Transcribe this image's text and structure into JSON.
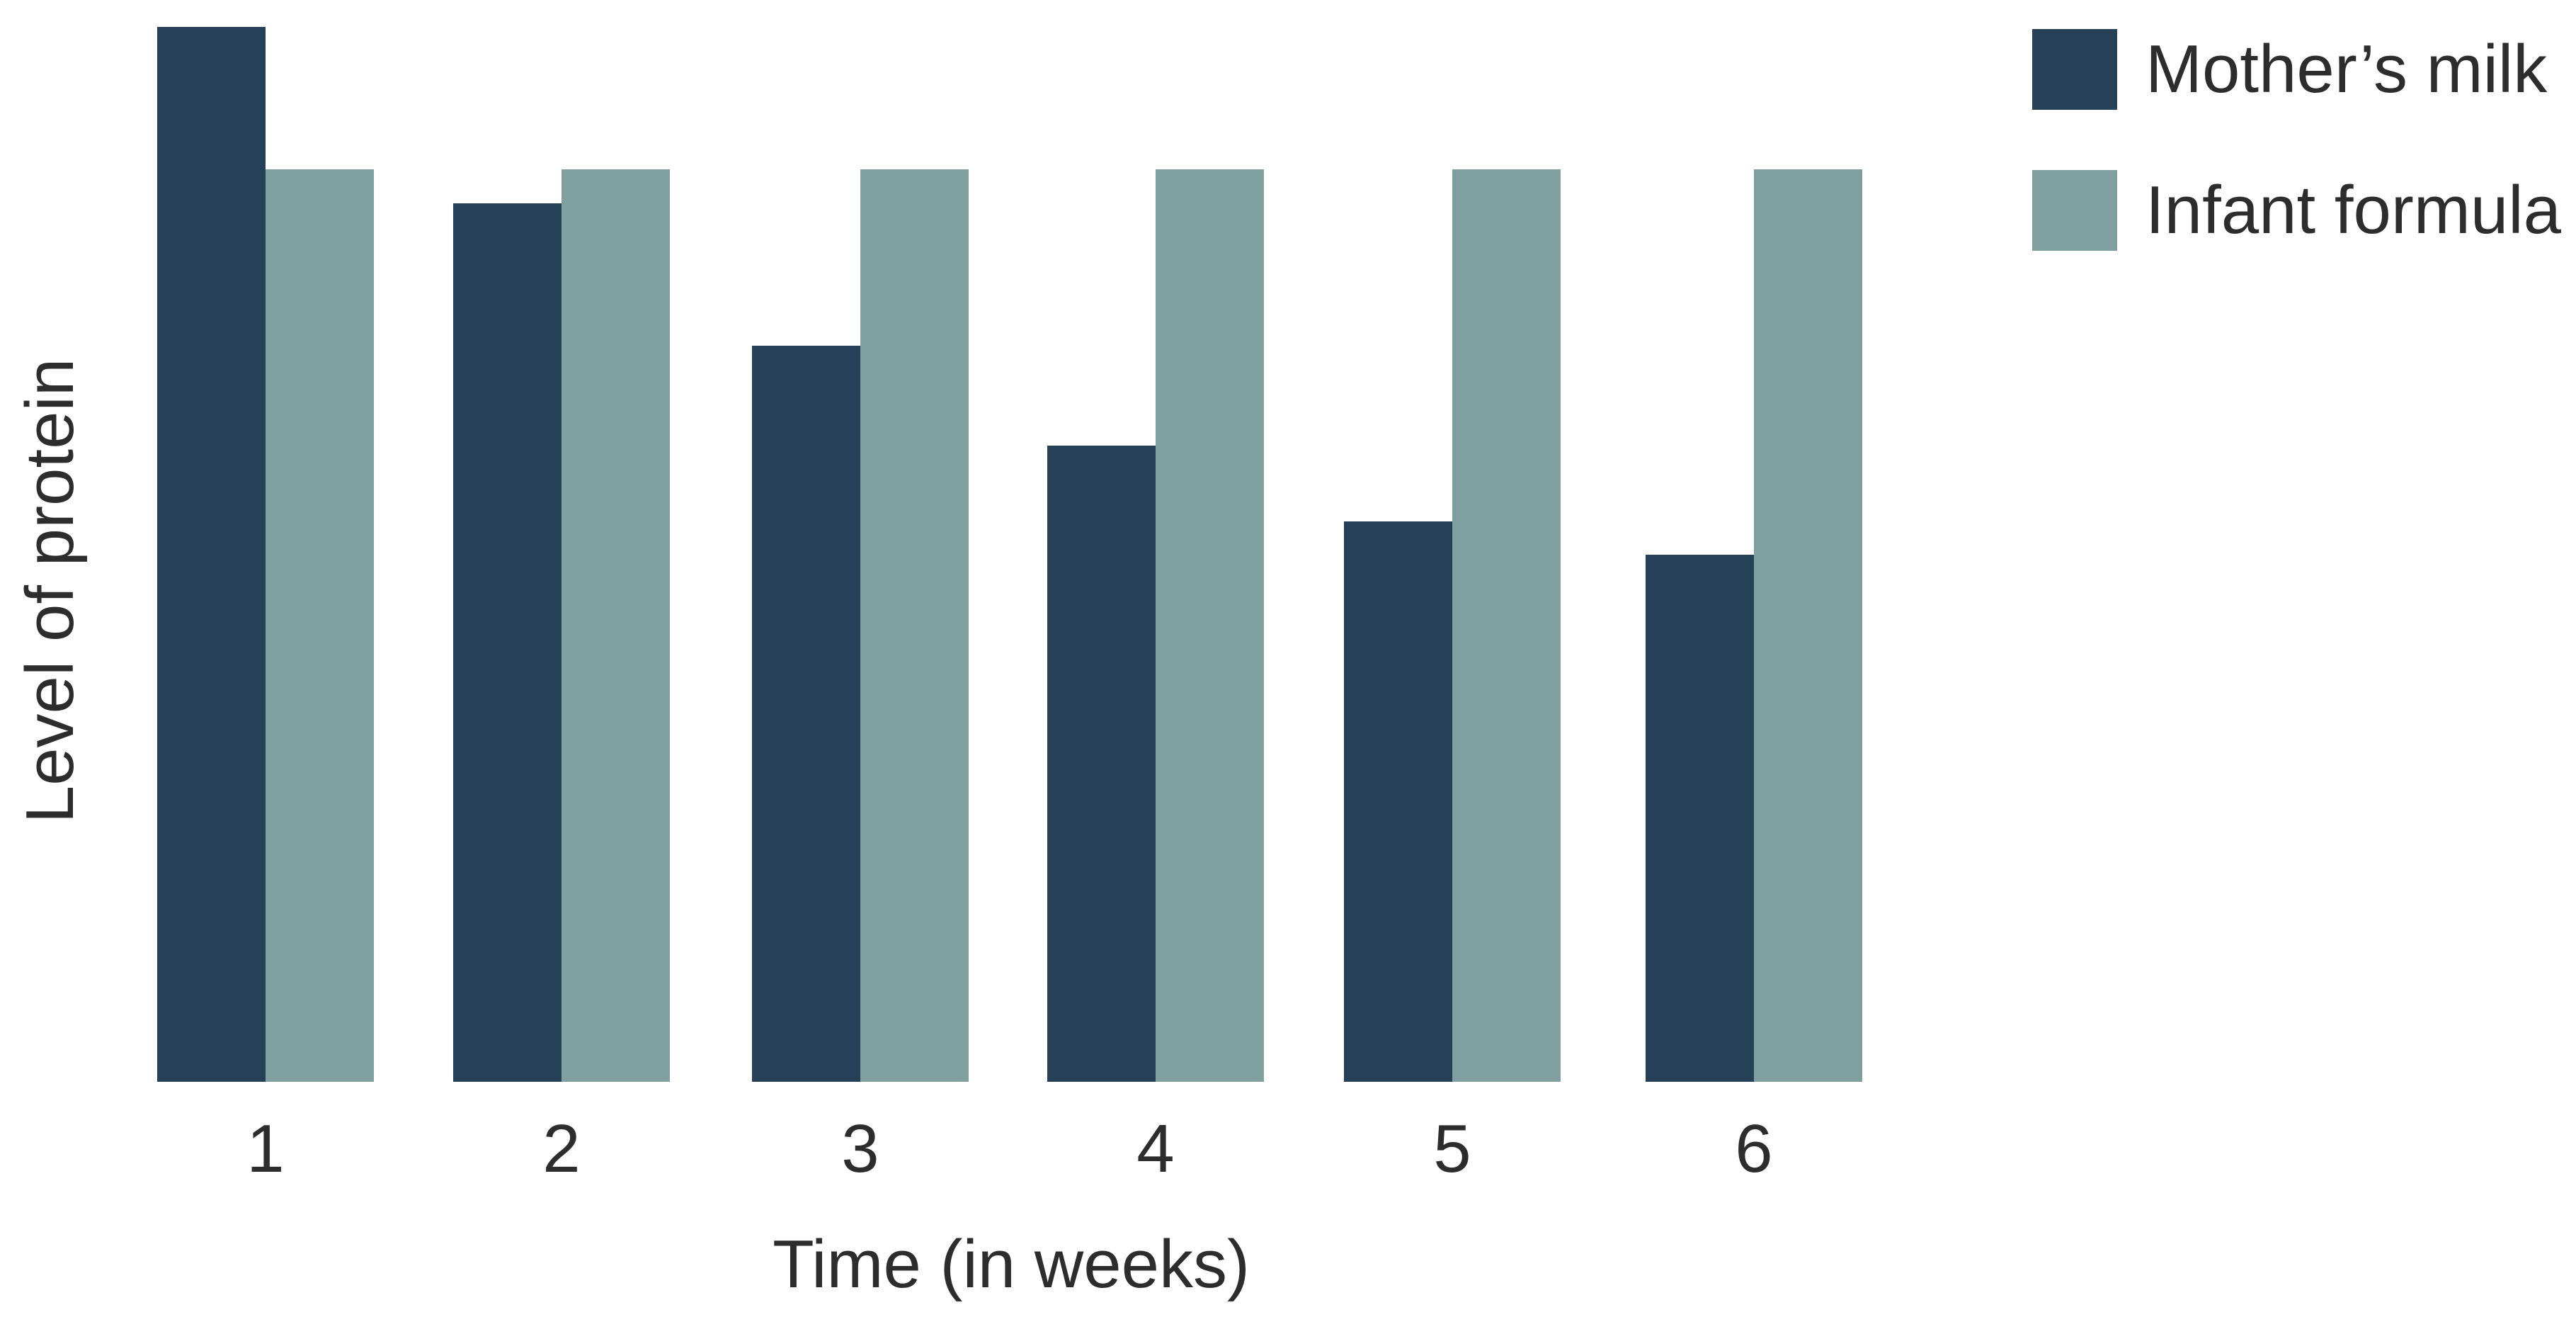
{
  "chart_data": {
    "type": "bar",
    "title": "",
    "categories": [
      "1",
      "2",
      "3",
      "4",
      "5",
      "6"
    ],
    "series": [
      {
        "name": "Mother’s milk",
        "values": [
          115.6,
          96.3,
          80.7,
          69.7,
          61.4,
          57.8
        ]
      },
      {
        "name": "Infant formula",
        "values": [
          100,
          100,
          100,
          100,
          100,
          100
        ]
      }
    ],
    "xlabel": "Time (in weeks)",
    "ylabel": "Level of protein",
    "value_units": "relative protein level (Infant formula bar = 100); y-axis has no numeric ticks",
    "ylim": [
      0,
      118.6
    ],
    "grid": false,
    "legend_position": "top-right",
    "colors": {
      "mothers_milk": "#264058",
      "infant_formula": "#80A0A0",
      "text": "#2D2D2D",
      "background": "#FFFFFF"
    }
  }
}
